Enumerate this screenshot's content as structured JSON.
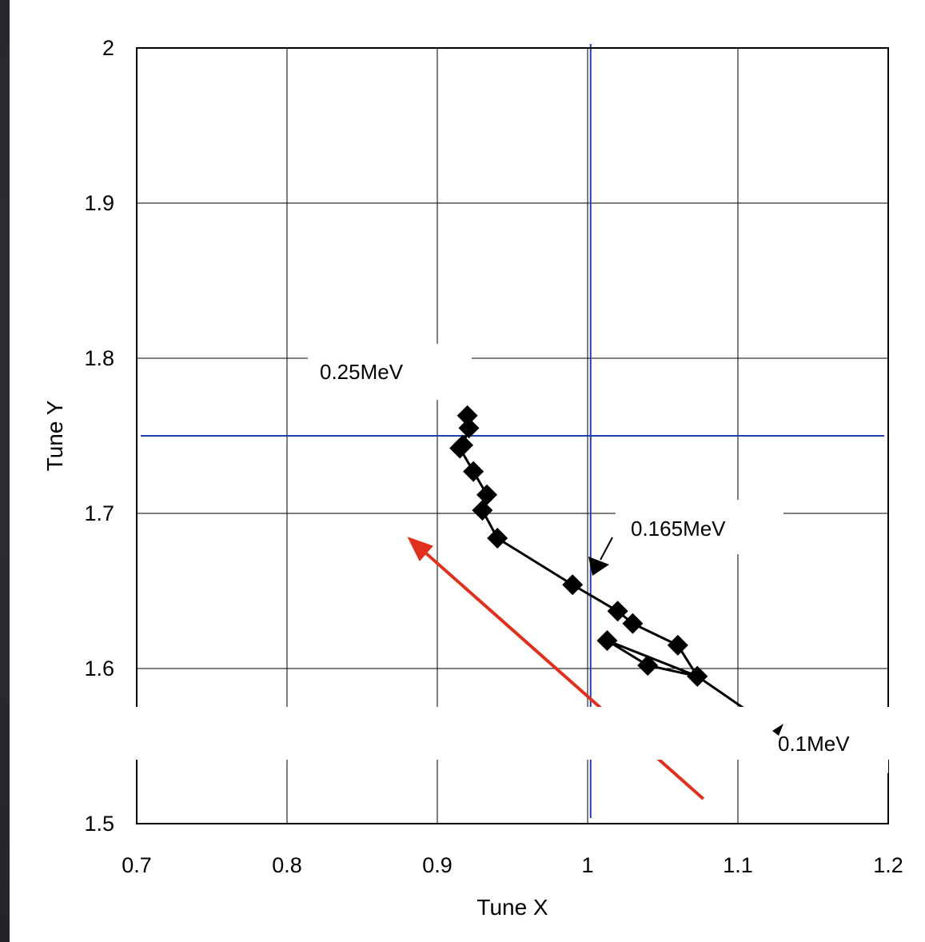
{
  "chart_data": {
    "type": "scatter",
    "title": "",
    "xlabel": "Tune X",
    "ylabel": "Tune Y",
    "xlim": [
      0.7,
      1.2
    ],
    "ylim": [
      1.5,
      2.0
    ],
    "x_ticks": [
      "0.7",
      "0.8",
      "0.9",
      "1",
      "1.1",
      "1.2"
    ],
    "y_ticks": [
      "1.5",
      "1.6",
      "1.7",
      "1.8",
      "1.9",
      "2"
    ],
    "grid": true,
    "series": [
      {
        "color": "#000000",
        "marker": "diamond",
        "line": true,
        "points": [
          [
            0.92,
            1.763
          ],
          [
            0.921,
            1.755
          ],
          [
            0.917,
            1.744
          ],
          [
            0.915,
            1.742
          ],
          [
            0.924,
            1.727
          ],
          [
            0.933,
            1.712
          ],
          [
            0.93,
            1.702
          ],
          [
            0.94,
            1.684
          ],
          [
            0.99,
            1.654
          ],
          [
            1.02,
            1.637
          ],
          [
            1.03,
            1.629
          ],
          [
            1.06,
            1.615
          ],
          [
            1.073,
            1.595
          ],
          [
            1.04,
            1.602
          ],
          [
            1.013,
            1.618
          ],
          [
            1.073,
            1.595
          ],
          [
            1.118,
            1.565
          ]
        ]
      }
    ],
    "reference_lines": {
      "color": "#1f3fb0",
      "vertical_x": 1.002,
      "horizontal_y": 1.75
    },
    "annotations": [
      {
        "text": "0.25MeV",
        "x": 0.84,
        "y": 1.79
      },
      {
        "text": "0.165MeV",
        "x": 1.055,
        "y": 1.69
      },
      {
        "text": "0.1MeV",
        "x": 1.135,
        "y": 1.553
      }
    ],
    "arrow": {
      "color": "#e0301e",
      "from": [
        1.077,
        1.516
      ],
      "to": [
        0.88,
        1.685
      ]
    }
  }
}
